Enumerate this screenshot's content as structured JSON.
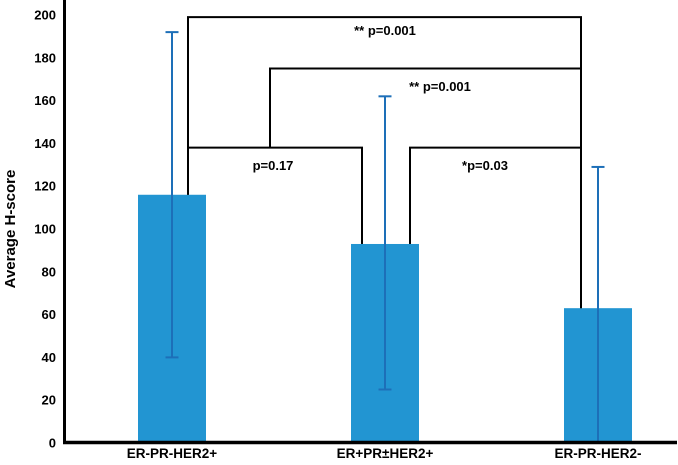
{
  "chart_data": {
    "type": "bar",
    "title": "",
    "xlabel": "",
    "ylabel": "Average H-score",
    "ylim": [
      0,
      200
    ],
    "ytick_step": 20,
    "ytick_labels": [
      "0",
      "20",
      "40",
      "60",
      "80",
      "100",
      "120",
      "140",
      "160",
      "180",
      "200"
    ],
    "grid": "off",
    "legend": "none",
    "categories": [
      "ER-PR-HER2+",
      "ER+PR±HER2+",
      "ER-PR-HER2-"
    ],
    "values": [
      116,
      93,
      63
    ],
    "error_whisker_high": [
      192,
      162,
      129
    ],
    "error_whisker_low": [
      40,
      25,
      0
    ],
    "error_low_has_cap": [
      true,
      true,
      false
    ],
    "bar_color": "#2295d2",
    "error_bar_color": "#1d6fb8",
    "axis_color": "#000000",
    "significance": [
      {
        "label": "** p=0.001",
        "between": [
          "ER-PR-HER2+",
          "ER-PR-HER2-"
        ],
        "level": 199
      },
      {
        "label": "** p=0.001",
        "between": [
          "ER+PR±HER2+",
          "ER-PR-HER2-"
        ],
        "level": 175
      },
      {
        "label": "p=0.17",
        "between": [
          "ER-PR-HER2+",
          "ER+PR±HER2+"
        ],
        "level": 138
      },
      {
        "label": "*p=0.03",
        "between": [
          "ER+PR±HER2+",
          "ER-PR-HER2-"
        ],
        "level": 138
      }
    ]
  }
}
